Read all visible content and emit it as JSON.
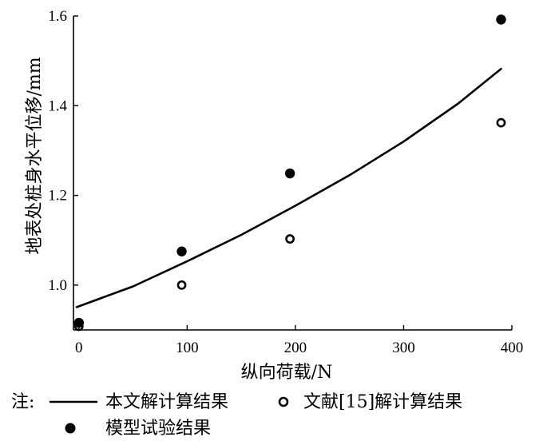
{
  "chart_data": {
    "type": "scatter",
    "title": "",
    "xlabel": "纵向荷载/N",
    "ylabel": "地表处桩身水平位移/mm",
    "xlim": [
      -5,
      400
    ],
    "ylim": [
      0.9,
      1.6
    ],
    "xticks": [
      0,
      100,
      200,
      300,
      400
    ],
    "xtick_labels": [
      "0",
      "100",
      "200",
      "300",
      "400"
    ],
    "yticks": [
      1.0,
      1.2,
      1.4,
      1.6
    ],
    "ytick_labels": [
      "1.0",
      "1.2",
      "1.4",
      "1.6"
    ],
    "grid": false,
    "legend_prefix": "注:",
    "series": [
      {
        "name": "本文解计算结果",
        "kind": "line",
        "x": [
          -2,
          50,
          100,
          150,
          200,
          250,
          300,
          350,
          390
        ],
        "y": [
          0.951,
          0.997,
          1.053,
          1.112,
          1.177,
          1.245,
          1.32,
          1.404,
          1.482
        ]
      },
      {
        "name": "文献[15]解计算结果",
        "kind": "open-marker",
        "x": [
          0,
          95,
          195,
          390
        ],
        "y": [
          0.908,
          1.0,
          1.103,
          1.362
        ]
      },
      {
        "name": "模型试验结果",
        "kind": "filled-marker",
        "x": [
          0,
          95,
          195,
          390
        ],
        "y": [
          0.916,
          1.075,
          1.249,
          1.592
        ]
      }
    ]
  }
}
